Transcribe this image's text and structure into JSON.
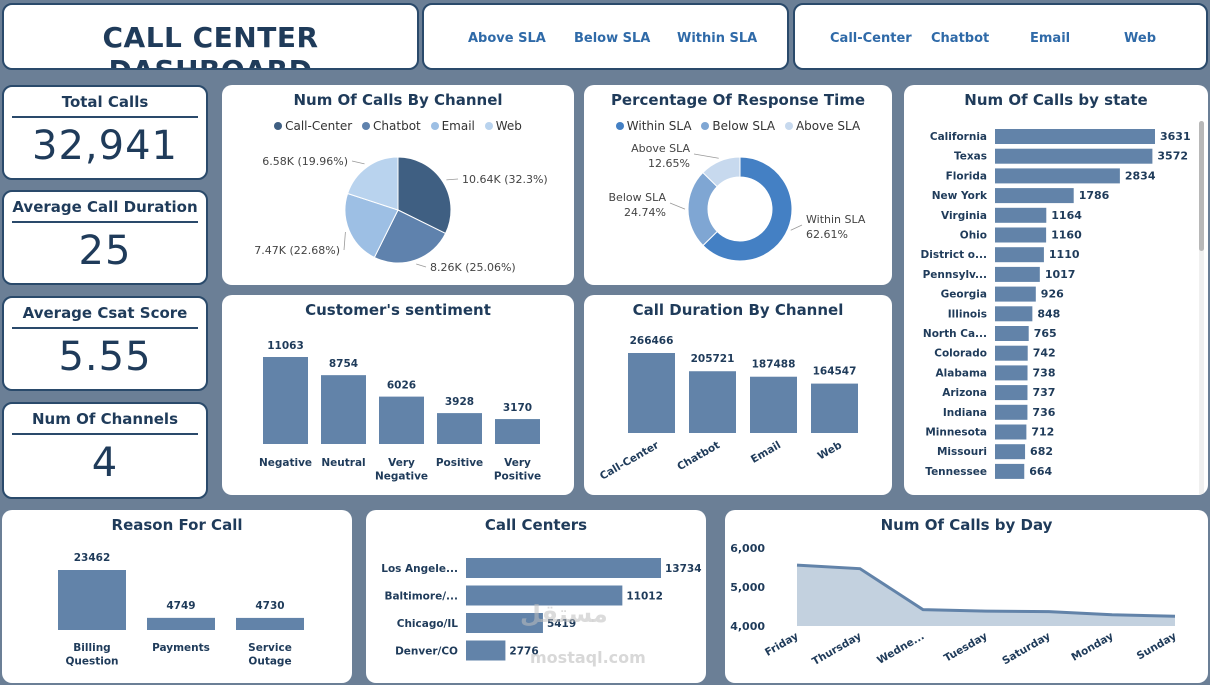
{
  "header": {
    "title": "CALL CENTER DASHBOARD"
  },
  "sla_slicer": [
    "Above SLA",
    "Below SLA",
    "Within SLA"
  ],
  "channel_slicer": [
    "Call-Center",
    "Chatbot",
    "Email",
    "Web"
  ],
  "kpis": [
    {
      "title": "Total Calls",
      "value": "32,941"
    },
    {
      "title": "Average Call Duration",
      "value": "25"
    },
    {
      "title": "Average Csat Score",
      "value": "5.55"
    },
    {
      "title": "Num Of Channels",
      "value": "4"
    }
  ],
  "colors": {
    "primary": "#6283a9",
    "dark": "#3f5f82",
    "mid": "#5f82ad",
    "light": "#9dbfe4",
    "lighter": "#b9d3ee",
    "donut_main": "#4480c4",
    "donut_mid": "#7fa6d3",
    "donut_light": "#c7d9ee"
  },
  "watermark": {
    "arabic": "مستقل",
    "latin": "mostaql.com"
  },
  "chart_data": [
    {
      "id": "calls_by_channel",
      "type": "pie",
      "title": "Num Of Calls By Channel",
      "legend": [
        "Call-Center",
        "Chatbot",
        "Email",
        "Web"
      ],
      "values": [
        10640,
        8260,
        7470,
        6580
      ],
      "labels": [
        "10.64K (32.3%)",
        "8.26K (25.06%)",
        "7.47K (22.68%)",
        "6.58K (19.96%)"
      ]
    },
    {
      "id": "response_time",
      "type": "pie",
      "title": "Percentage Of Response Time",
      "legend": [
        "Within SLA",
        "Below SLA",
        "Above SLA"
      ],
      "values": [
        62.61,
        24.74,
        12.65
      ],
      "labels": [
        [
          "Within SLA",
          "62.61%"
        ],
        [
          "Below SLA",
          "24.74%"
        ],
        [
          "Above SLA",
          "12.65%"
        ]
      ]
    },
    {
      "id": "calls_by_state",
      "type": "bar",
      "orientation": "horizontal",
      "title": "Num Of Calls by state",
      "categories": [
        "California",
        "Texas",
        "Florida",
        "New York",
        "Virginia",
        "Ohio",
        "District o...",
        "Pennsylv...",
        "Georgia",
        "Illinois",
        "North Ca...",
        "Colorado",
        "Alabama",
        "Arizona",
        "Indiana",
        "Minnesota",
        "Missouri",
        "Tennessee"
      ],
      "values": [
        3631,
        3572,
        2834,
        1786,
        1164,
        1160,
        1110,
        1017,
        926,
        848,
        765,
        742,
        738,
        737,
        736,
        712,
        682,
        664
      ]
    },
    {
      "id": "sentiment",
      "type": "bar",
      "title": "Customer's sentiment",
      "categories": [
        "Negative",
        "Neutral",
        "Very Negative",
        "Positive",
        "Very Positive"
      ],
      "values": [
        11063,
        8754,
        6026,
        3928,
        3170
      ]
    },
    {
      "id": "duration_by_channel",
      "type": "bar",
      "title": "Call Duration By Channel",
      "categories": [
        "Call-Center",
        "Chatbot",
        "Email",
        "Web"
      ],
      "values": [
        266466,
        205721,
        187488,
        164547
      ]
    },
    {
      "id": "reason_for_call",
      "type": "bar",
      "title": "Reason For Call",
      "categories": [
        "Billing Question",
        "Payments",
        "Service Outage"
      ],
      "values": [
        23462,
        4749,
        4730
      ]
    },
    {
      "id": "call_centers",
      "type": "bar",
      "orientation": "horizontal",
      "title": "Call Centers",
      "categories": [
        "Los Angele...",
        "Baltimore/...",
        "Chicago/IL",
        "Denver/CO"
      ],
      "values": [
        13734,
        11012,
        5419,
        2776
      ]
    },
    {
      "id": "calls_by_day",
      "type": "area",
      "title": "Num Of Calls by Day",
      "categories": [
        "Friday",
        "Thursday",
        "Wedne...",
        "Tuesday",
        "Saturday",
        "Monday",
        "Sunday"
      ],
      "values": [
        5560,
        5470,
        4420,
        4380,
        4370,
        4290,
        4250
      ],
      "ylim": [
        4000,
        6000
      ],
      "yticks": [
        "6,000",
        "5,000",
        "4,000"
      ],
      "ytick_values": [
        6000,
        5000,
        4000
      ]
    }
  ]
}
